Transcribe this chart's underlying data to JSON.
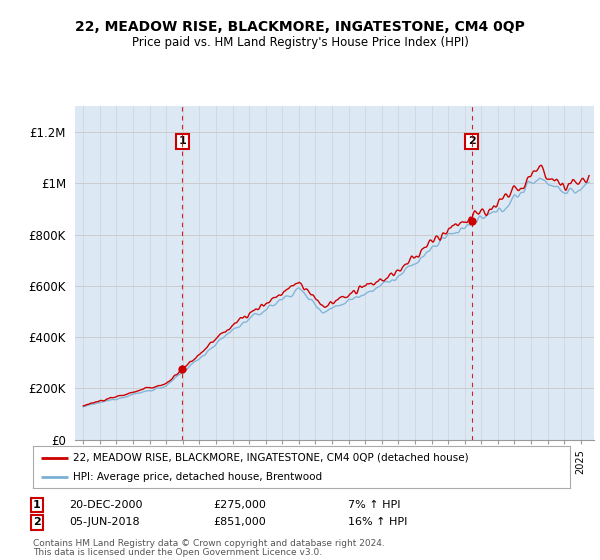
{
  "title": "22, MEADOW RISE, BLACKMORE, INGATESTONE, CM4 0QP",
  "subtitle": "Price paid vs. HM Land Registry's House Price Index (HPI)",
  "legend_line1": "22, MEADOW RISE, BLACKMORE, INGATESTONE, CM4 0QP (detached house)",
  "legend_line2": "HPI: Average price, detached house, Brentwood",
  "annotation1_date": "20-DEC-2000",
  "annotation1_price": "£275,000",
  "annotation1_hpi": "7% ↑ HPI",
  "annotation1_year": 2000.97,
  "annotation1_value": 275000,
  "annotation2_date": "05-JUN-2018",
  "annotation2_price": "£851,000",
  "annotation2_hpi": "16% ↑ HPI",
  "annotation2_year": 2018.43,
  "annotation2_value": 851000,
  "footer1": "Contains HM Land Registry data © Crown copyright and database right 2024.",
  "footer2": "This data is licensed under the Open Government Licence v3.0.",
  "line1_color": "#cc0000",
  "line2_color": "#7ab0d4",
  "fill_color": "#dce9f5",
  "background_color": "#ffffff",
  "grid_color": "#cccccc",
  "ylim": [
    0,
    1300000
  ],
  "yticks": [
    0,
    200000,
    400000,
    600000,
    800000,
    1000000,
    1200000
  ],
  "ytick_labels": [
    "£0",
    "£200K",
    "£400K",
    "£600K",
    "£800K",
    "£1M",
    "£1.2M"
  ],
  "xmin": 1994.5,
  "xmax": 2025.8
}
